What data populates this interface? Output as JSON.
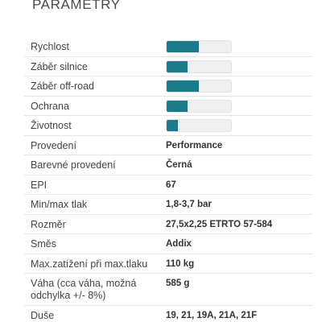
{
  "header": {
    "title": "PARAMETRY"
  },
  "colors": {
    "bar_fill": "#1b7b8b",
    "bar_track": "#efefef"
  },
  "ratings": [
    {
      "label": "Rychlost",
      "level": 0.5
    },
    {
      "label": "Záběr silnice",
      "level": 0.33
    },
    {
      "label": "Záběr off-road",
      "level": 0.5
    },
    {
      "label": "Ochrana",
      "level": 0.33
    },
    {
      "label": "Životnost",
      "level": 0.17
    }
  ],
  "specs": [
    {
      "label": "Provedení",
      "value": "Performance"
    },
    {
      "label": "Barevné provedení",
      "value": "Černá"
    },
    {
      "label": "EPI",
      "value": "67"
    },
    {
      "label": "Min/max tlak",
      "value": "1,8-3,7 bar"
    },
    {
      "label": "Rozměr",
      "value": "27,5x2,25 ETRTO 57-584"
    },
    {
      "label": "Směs",
      "value": "Addix"
    },
    {
      "label": "Max.zatížení při max.tlaku",
      "value": "110 kg"
    },
    {
      "label": "Váha (cca váha, možná odchylka +/- 8%)",
      "value": "585 g"
    },
    {
      "label": "Duše",
      "value": "19, 21, 19A, 21A, 21F"
    }
  ]
}
